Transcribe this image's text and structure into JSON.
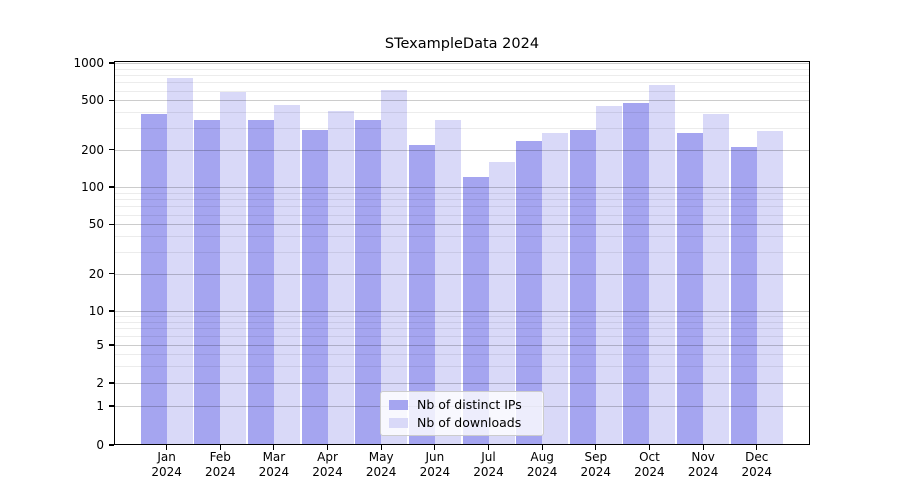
{
  "figure": {
    "title": "STexampleData 2024",
    "background": "#ffffff"
  },
  "chart_data": {
    "type": "bar",
    "title": "STexampleData 2024",
    "categories": [
      "Jan",
      "Feb",
      "Mar",
      "Apr",
      "May",
      "Jun",
      "Jul",
      "Aug",
      "Sep",
      "Oct",
      "Nov",
      "Dec"
    ],
    "category_year": "2024",
    "series": [
      {
        "name": "Nb of distinct IPs",
        "color": "#a5a5f0",
        "values": [
          385,
          350,
          345,
          290,
          345,
          220,
          120,
          235,
          290,
          475,
          275,
          210
        ]
      },
      {
        "name": "Nb of downloads",
        "color": "#d9d9f8",
        "values": [
          760,
          580,
          455,
          410,
          605,
          350,
          160,
          275,
          450,
          665,
          385,
          285
        ]
      }
    ],
    "y_ticks": [
      0,
      1,
      2,
      5,
      10,
      20,
      50,
      100,
      200,
      500,
      1000
    ],
    "y_minor_ticks": [
      3,
      4,
      6,
      7,
      8,
      9,
      30,
      40,
      60,
      70,
      80,
      90,
      300,
      400,
      600,
      700,
      800,
      900
    ],
    "y_scale": "symlog",
    "ylim": [
      0,
      1000
    ],
    "xlabel": "",
    "ylabel": "",
    "grid": true,
    "legend": {
      "position": "lower center",
      "entries": [
        "Nb of distinct IPs",
        "Nb of downloads"
      ]
    }
  },
  "colors": {
    "bar_distinct_ips": "#a5a5f0",
    "bar_downloads": "#d9d9f8",
    "grid_major": "#cccccc",
    "grid_minor": "#ececec",
    "axis": "#000000"
  }
}
